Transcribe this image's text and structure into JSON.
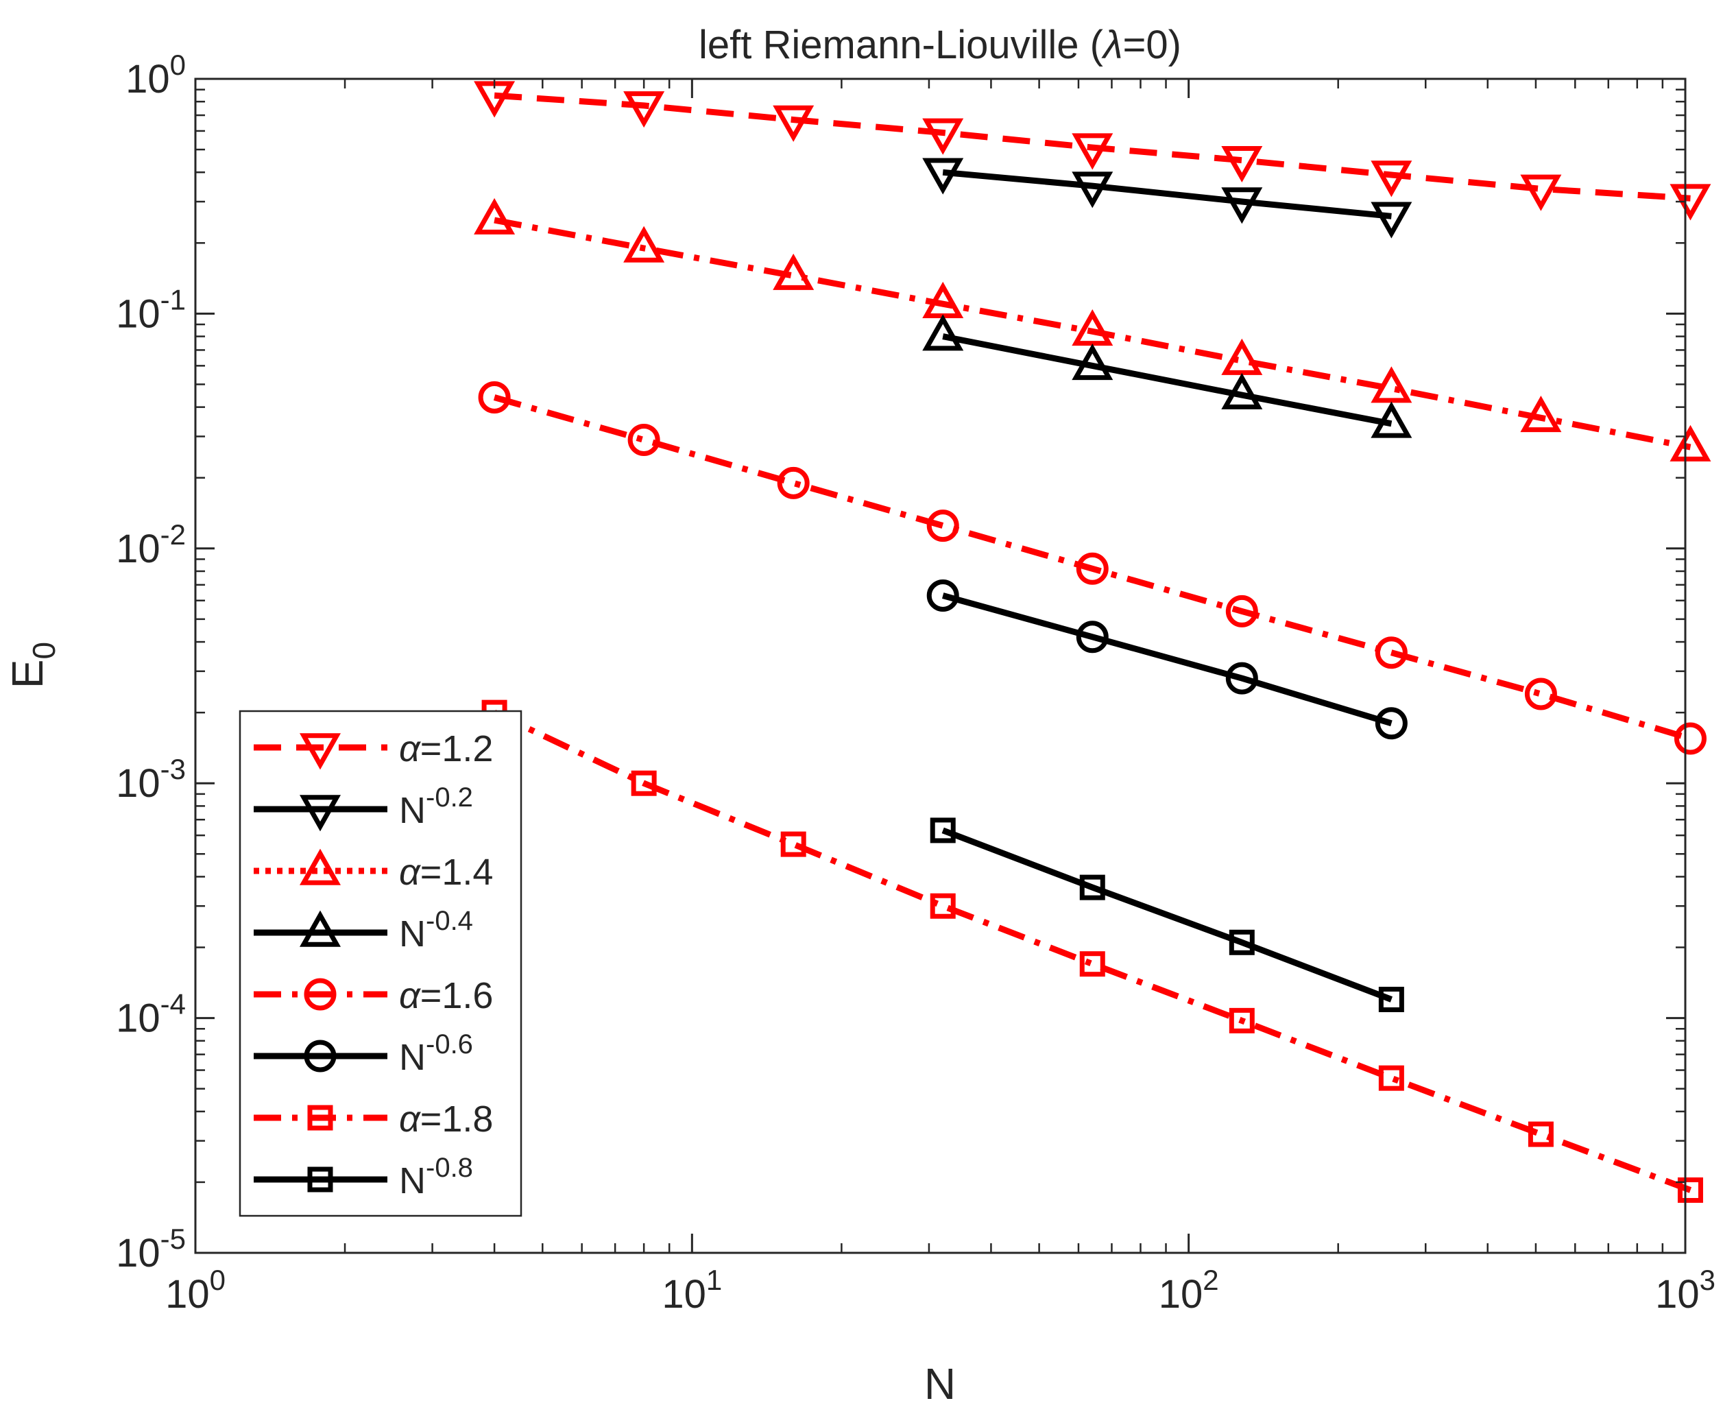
{
  "chart_data": {
    "type": "line",
    "title_prefix": "left Riemann-Liouville (",
    "title_symbol": "λ",
    "title_suffix": "=0)",
    "xlabel": "N",
    "ylabel_main": "E",
    "ylabel_sub": "0",
    "x_scale": "log",
    "y_scale": "log",
    "xlim": [
      1,
      1000
    ],
    "ylim": [
      1e-05,
      1
    ],
    "x_ticks": [
      {
        "value": 1,
        "base": "10",
        "exp": "0"
      },
      {
        "value": 10,
        "base": "10",
        "exp": "1"
      },
      {
        "value": 100,
        "base": "10",
        "exp": "2"
      },
      {
        "value": 1000,
        "base": "10",
        "exp": "3"
      }
    ],
    "y_ticks": [
      {
        "value": 1,
        "base": "10",
        "exp": "0"
      },
      {
        "value": 0.1,
        "base": "10",
        "exp": "-1"
      },
      {
        "value": 0.01,
        "base": "10",
        "exp": "-2"
      },
      {
        "value": 0.001,
        "base": "10",
        "exp": "-3"
      },
      {
        "value": 0.0001,
        "base": "10",
        "exp": "-4"
      },
      {
        "value": 1e-05,
        "base": "10",
        "exp": "-5"
      }
    ],
    "grid": false,
    "legend_position": "bottom-left",
    "series": [
      {
        "name_symbol": "α",
        "name_text": "=1.2",
        "color": "#ff0000",
        "dash": "dashed",
        "marker": "triangle-down",
        "x": [
          4,
          8,
          16,
          32,
          64,
          128,
          256,
          512,
          1024
        ],
        "y": [
          0.85,
          0.77,
          0.67,
          0.59,
          0.51,
          0.45,
          0.39,
          0.34,
          0.31
        ]
      },
      {
        "name_main": "N",
        "name_exp": "-0.2",
        "color": "#000000",
        "dash": "solid",
        "marker": "triangle-down",
        "x": [
          32,
          64,
          128,
          256
        ],
        "y": [
          0.4,
          0.35,
          0.3,
          0.26
        ]
      },
      {
        "name_symbol": "α",
        "name_text": "=1.4",
        "color": "#ff0000",
        "dash": "dashdot",
        "legend_dash": "dotted",
        "marker": "triangle-up",
        "x": [
          4,
          8,
          16,
          32,
          64,
          128,
          256,
          512,
          1024
        ],
        "y": [
          0.25,
          0.19,
          0.145,
          0.11,
          0.084,
          0.063,
          0.048,
          0.036,
          0.027
        ]
      },
      {
        "name_main": "N",
        "name_exp": "-0.4",
        "color": "#000000",
        "dash": "solid",
        "marker": "triangle-up",
        "x": [
          32,
          64,
          128,
          256
        ],
        "y": [
          0.08,
          0.06,
          0.045,
          0.034
        ]
      },
      {
        "name_symbol": "α",
        "name_text": "=1.6",
        "color": "#ff0000",
        "dash": "dashdot",
        "marker": "circle",
        "x": [
          4,
          8,
          16,
          32,
          64,
          128,
          256,
          512,
          1024
        ],
        "y": [
          0.044,
          0.029,
          0.019,
          0.0125,
          0.0082,
          0.0054,
          0.0036,
          0.0024,
          0.00155
        ]
      },
      {
        "name_main": "N",
        "name_exp": "-0.6",
        "color": "#000000",
        "dash": "solid",
        "marker": "circle",
        "x": [
          32,
          64,
          128,
          256
        ],
        "y": [
          0.0063,
          0.0042,
          0.0028,
          0.0018
        ]
      },
      {
        "name_symbol": "α",
        "name_text": "=1.8",
        "color": "#ff0000",
        "dash": "dashdot",
        "marker": "square",
        "x": [
          4,
          8,
          16,
          32,
          64,
          128,
          256,
          512,
          1024
        ],
        "y": [
          0.002,
          0.001,
          0.00055,
          0.0003,
          0.00017,
          9.75e-05,
          5.55e-05,
          3.2e-05,
          1.85e-05
        ]
      },
      {
        "name_main": "N",
        "name_exp": "-0.8",
        "color": "#000000",
        "dash": "solid",
        "marker": "square",
        "x": [
          32,
          64,
          128,
          256
        ],
        "y": [
          0.00063,
          0.00036,
          0.00021,
          0.00012
        ]
      }
    ]
  }
}
